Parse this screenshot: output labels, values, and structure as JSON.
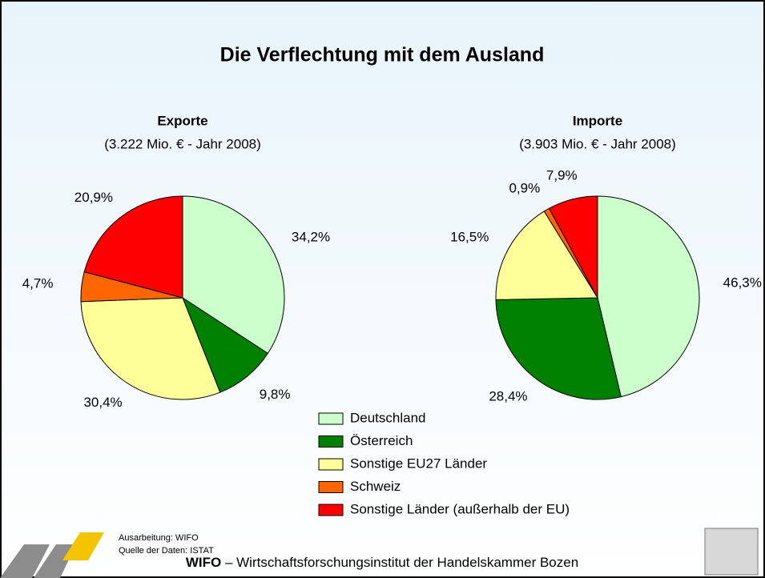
{
  "title": "Die Verflechtung mit dem Ausland",
  "chart_data": [
    {
      "type": "pie",
      "title": "Exporte",
      "subtitle": "(3.222 Mio. € - Jahr 2008)",
      "categories": [
        "Deutschland",
        "Österreich",
        "Sonstige EU27 Länder",
        "Schweiz",
        "Sonstige Länder (außerhalb der EU)"
      ],
      "values": [
        34.2,
        9.8,
        30.4,
        4.7,
        20.9
      ],
      "value_labels": [
        "34,2%",
        "9,8%",
        "30,4%",
        "4,7%",
        "20,9%"
      ],
      "colors": [
        "#ccffcc",
        "#008000",
        "#ffff99",
        "#ff6600",
        "#ff0000"
      ]
    },
    {
      "type": "pie",
      "title": "Importe",
      "subtitle": "(3.903 Mio. € - Jahr 2008)",
      "categories": [
        "Deutschland",
        "Österreich",
        "Sonstige EU27 Länder",
        "Schweiz",
        "Sonstige Länder (außerhalb der EU)"
      ],
      "values": [
        46.3,
        28.4,
        16.5,
        0.9,
        7.9
      ],
      "value_labels": [
        "46,3%",
        "28,4%",
        "16,5%",
        "0,9%",
        "7,9%"
      ],
      "colors": [
        "#ccffcc",
        "#008000",
        "#ffff99",
        "#ff6600",
        "#ff0000"
      ]
    }
  ],
  "credits": [
    "Ausarbeitung: WIFO",
    "Quelle der Daten: ISTAT"
  ],
  "footer": {
    "org": "WIFO",
    "text": "– Wirtschaftsforschungsinstitut der Handelskammer Bozen"
  }
}
